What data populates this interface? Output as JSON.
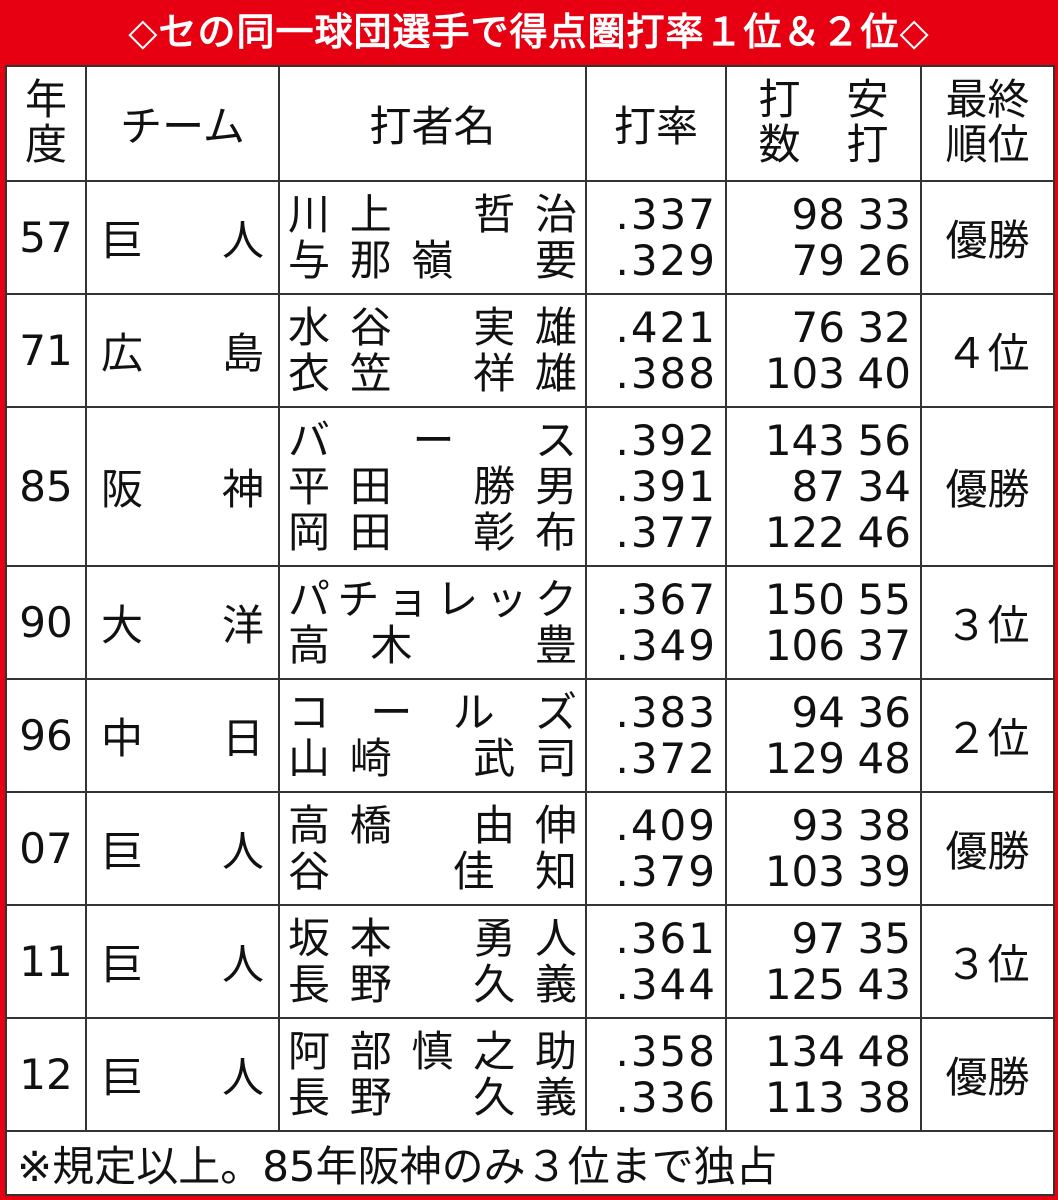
{
  "title": "◇セの同一球団選手で得点圏打率１位＆２位◇",
  "table": {
    "headers": {
      "year": "年度",
      "team": "チーム",
      "batter": "打者名",
      "avg": "打率",
      "at_bats": "打数",
      "hits": "安打",
      "final": "最終順位"
    },
    "rows": [
      {
        "year": "57",
        "team": "巨　人",
        "final": "優勝",
        "players": [
          {
            "name": "川上　哲治",
            "avg": ".337",
            "at_bats": 98,
            "hits": 33
          },
          {
            "name": "与那嶺　要",
            "avg": ".329",
            "at_bats": 79,
            "hits": 26
          }
        ]
      },
      {
        "year": "71",
        "team": "広　島",
        "final": "４位",
        "players": [
          {
            "name": "水谷　実雄",
            "avg": ".421",
            "at_bats": 76,
            "hits": 32
          },
          {
            "name": "衣笠　祥雄",
            "avg": ".388",
            "at_bats": 103,
            "hits": 40
          }
        ]
      },
      {
        "year": "85",
        "team": "阪　神",
        "final": "優勝",
        "players": [
          {
            "name": "バース",
            "avg": ".392",
            "at_bats": 143,
            "hits": 56
          },
          {
            "name": "平田　勝男",
            "avg": ".391",
            "at_bats": 87,
            "hits": 34
          },
          {
            "name": "岡田　彰布",
            "avg": ".377",
            "at_bats": 122,
            "hits": 46
          }
        ]
      },
      {
        "year": "90",
        "team": "大　洋",
        "final": "３位",
        "players": [
          {
            "name": "パチョレック",
            "avg": ".367",
            "at_bats": 150,
            "hits": 55
          },
          {
            "name": "高木　豊",
            "avg": ".349",
            "at_bats": 106,
            "hits": 37
          }
        ]
      },
      {
        "year": "96",
        "team": "中　日",
        "final": "２位",
        "players": [
          {
            "name": "コールズ",
            "avg": ".383",
            "at_bats": 94,
            "hits": 36
          },
          {
            "name": "山崎　武司",
            "avg": ".372",
            "at_bats": 129,
            "hits": 48
          }
        ]
      },
      {
        "year": "07",
        "team": "巨　人",
        "final": "優勝",
        "players": [
          {
            "name": "高橋　由伸",
            "avg": ".409",
            "at_bats": 93,
            "hits": 38
          },
          {
            "name": "谷　佳知",
            "avg": ".379",
            "at_bats": 103,
            "hits": 39
          }
        ]
      },
      {
        "year": "11",
        "team": "巨　人",
        "final": "３位",
        "players": [
          {
            "name": "坂本　勇人",
            "avg": ".361",
            "at_bats": 97,
            "hits": 35
          },
          {
            "name": "長野　久義",
            "avg": ".344",
            "at_bats": 125,
            "hits": 43
          }
        ]
      },
      {
        "year": "12",
        "team": "巨　人",
        "final": "優勝",
        "players": [
          {
            "name": "阿部慎之助",
            "avg": ".358",
            "at_bats": 134,
            "hits": 48
          },
          {
            "name": "長野　久義",
            "avg": ".336",
            "at_bats": 113,
            "hits": 38
          }
        ]
      }
    ]
  },
  "footnote": "※規定以上。85年阪神のみ３位まで独占"
}
